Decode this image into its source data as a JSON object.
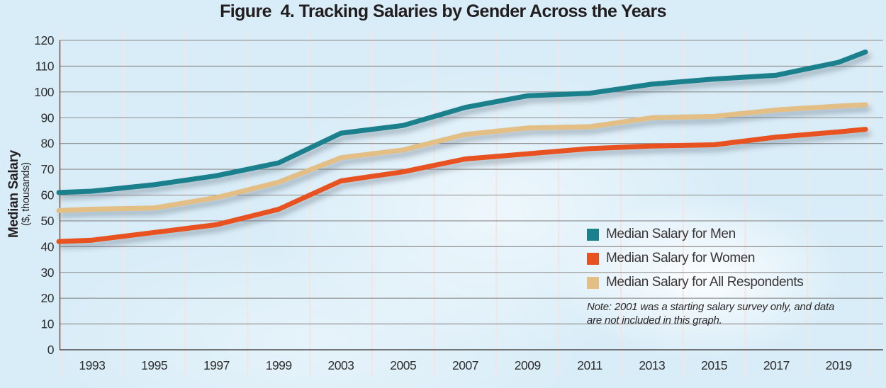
{
  "title": "Figure  4. Tracking Salaries by Gender Across the Years",
  "y_axis": {
    "label": "Median Salary",
    "sublabel": "($, thousands)",
    "min": 0,
    "max": 120,
    "step": 10
  },
  "x_axis": {
    "years": [
      "1993",
      "1995",
      "1997",
      "1999",
      "2003",
      "2005",
      "2007",
      "2009",
      "2011",
      "2013",
      "2015",
      "2017",
      "2019"
    ]
  },
  "legend": [
    {
      "label": "Median Salary for Men",
      "color": "#1A808C"
    },
    {
      "label": "Median Salary for Women",
      "color": "#E85220"
    },
    {
      "label": "Median Salary for All Respondents",
      "color": "#E3BF85"
    }
  ],
  "note_line1": "Note: 2001 was a starting salary survey only, and data",
  "note_line2": "are not included in this graph.",
  "colors": {
    "background": "#D9EDF8",
    "horizontal_grid": "#8B8B8B",
    "vertical_grid": "#F3E5E3",
    "axis": "#4A4A4A",
    "tick_text": "#2E2E2E",
    "title_text": "#221E1F"
  },
  "chart_data": {
    "type": "line",
    "title": "Figure 4. Tracking Salaries by Gender Across the Years",
    "categories": [
      "1993",
      "1995",
      "1997",
      "1999",
      "2003",
      "2005",
      "2007",
      "2009",
      "2011",
      "2013",
      "2015",
      "2017",
      "2019"
    ],
    "series": [
      {
        "name": "Median Salary for Men",
        "color": "#1A808C",
        "values": [
          61.5,
          64,
          67.5,
          72.5,
          84,
          87,
          94,
          98.5,
          99.5,
          103,
          105,
          106.5,
          111.5
        ],
        "left_edge_value": 61,
        "right_edge_value": 115.5
      },
      {
        "name": "Median Salary for Women",
        "color": "#E85220",
        "values": [
          42.5,
          45.5,
          48.5,
          54.5,
          65.5,
          69,
          74,
          76,
          78,
          79,
          79.5,
          82.5,
          84.5
        ],
        "left_edge_value": 42,
        "right_edge_value": 85.5
      },
      {
        "name": "Median Salary for All Respondents",
        "color": "#E3BF85",
        "values": [
          54.5,
          55,
          59,
          65,
          74.5,
          77.5,
          83.5,
          86,
          86.5,
          90,
          90.5,
          93,
          94.5
        ],
        "left_edge_value": 54,
        "right_edge_value": 95
      }
    ],
    "xlabel": "",
    "ylabel": "Median Salary ($, thousands)",
    "ylim": [
      0,
      120
    ],
    "ytick_step": 10,
    "grid": true,
    "legend_position": "inside-right",
    "annotation": "Note: 2001 was a starting salary survey only, and data are not included in this graph."
  }
}
